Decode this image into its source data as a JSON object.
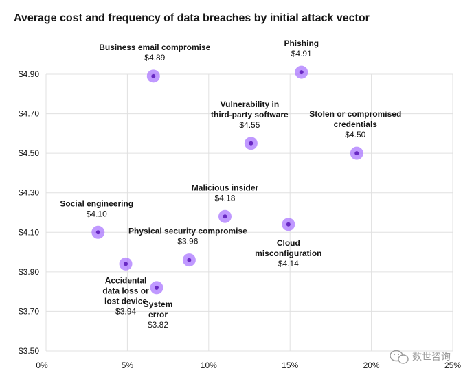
{
  "chart_data": {
    "type": "scatter",
    "title": "Average cost and frequency of data breaches by initial attack vector",
    "xlabel": "",
    "ylabel": "",
    "xlim": [
      0,
      25
    ],
    "ylim": [
      3.5,
      4.9
    ],
    "x_ticks": [
      "0%",
      "5%",
      "10%",
      "15%",
      "20%",
      "25%"
    ],
    "y_ticks": [
      "$3.50",
      "$3.70",
      "$3.90",
      "$4.10",
      "$4.30",
      "$4.50",
      "$4.70",
      "$4.90"
    ],
    "grid": true,
    "point_color": "#a56eff",
    "point_core_color": "#6929c4",
    "points": [
      {
        "name_lines": [
          "Business email compromise"
        ],
        "value_label": "$4.89",
        "x": 6.6,
        "y": 4.89
      },
      {
        "name_lines": [
          "Phishing"
        ],
        "value_label": "$4.91",
        "x": 15.7,
        "y": 4.91
      },
      {
        "name_lines": [
          "Vulnerability in",
          "third-party software"
        ],
        "value_label": "$4.55",
        "x": 12.6,
        "y": 4.55
      },
      {
        "name_lines": [
          "Stolen or compromised",
          "credentials"
        ],
        "value_label": "$4.50",
        "x": 19.1,
        "y": 4.5
      },
      {
        "name_lines": [
          "Malicious insider"
        ],
        "value_label": "$4.18",
        "x": 11.0,
        "y": 4.18
      },
      {
        "name_lines": [
          "Social engineering"
        ],
        "value_label": "$4.10",
        "x": 3.2,
        "y": 4.1
      },
      {
        "name_lines": [
          "Cloud",
          "misconfiguration"
        ],
        "value_label": "$4.14",
        "x": 14.9,
        "y": 4.14
      },
      {
        "name_lines": [
          "Physical security compromise"
        ],
        "value_label": "$3.96",
        "x": 8.8,
        "y": 3.96
      },
      {
        "name_lines": [
          "Accidental",
          "data loss or",
          "lost device"
        ],
        "value_label": "$3.94",
        "x": 4.9,
        "y": 3.94
      },
      {
        "name_lines": [
          "System",
          "error"
        ],
        "value_label": "$3.82",
        "x": 6.8,
        "y": 3.82
      }
    ]
  },
  "watermark": {
    "text": "数世咨询",
    "icon": "wechat-icon"
  }
}
